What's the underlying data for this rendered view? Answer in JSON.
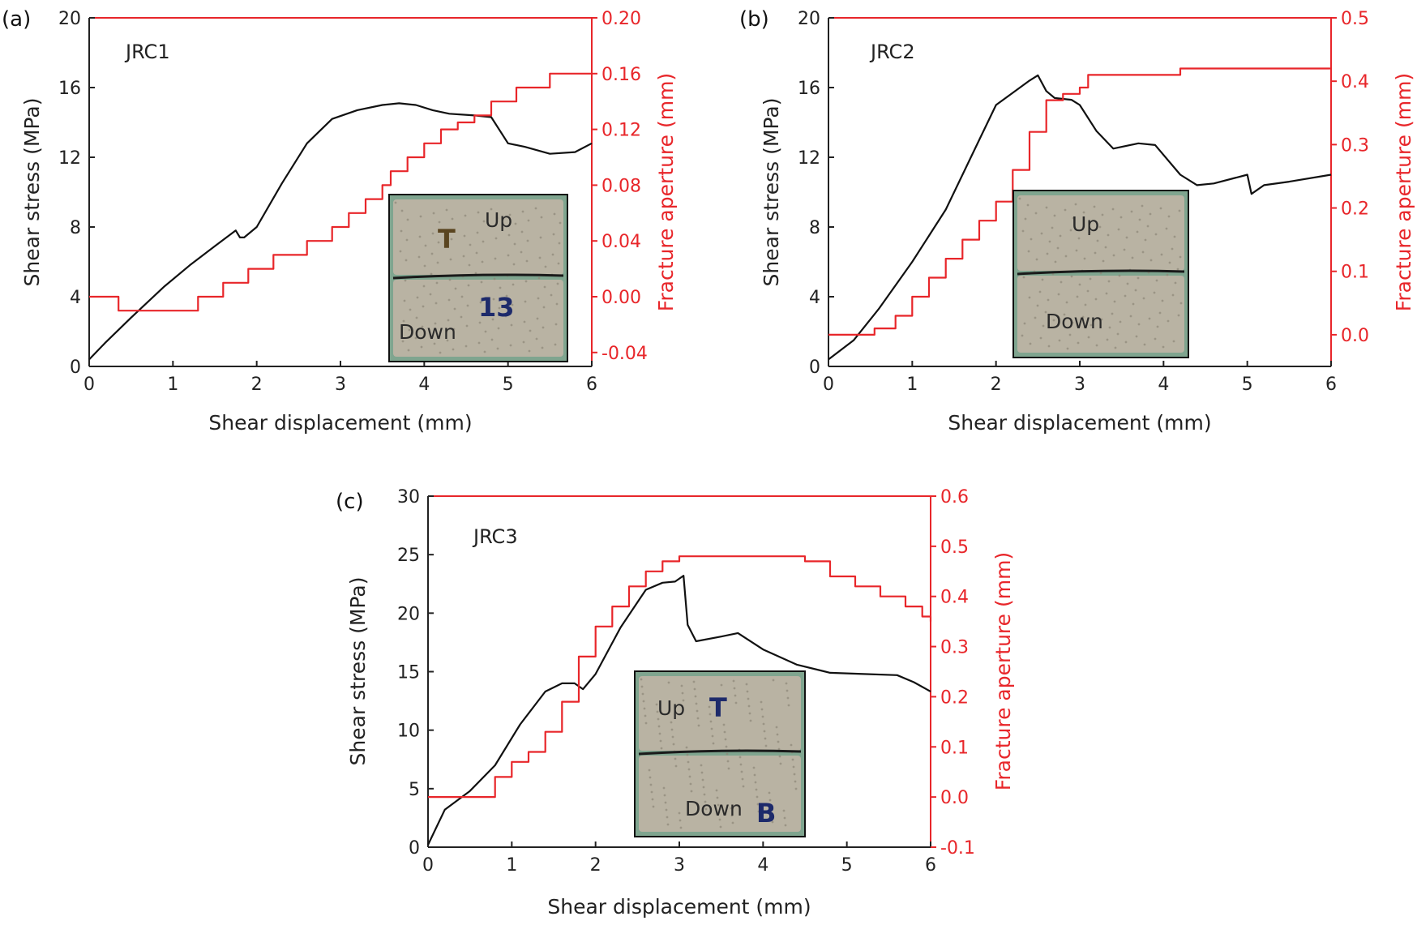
{
  "colors": {
    "stress": "#111111",
    "aperture": "#e8262a",
    "rock_base": "#b9b3a3",
    "rock_dark": "#8d8778",
    "marker_brown": "#5a4520",
    "marker_blue": "#1d2a6b"
  },
  "chart_data": [
    {
      "type": "line",
      "panel": "(a)",
      "title": "JRC1",
      "xlabel": "Shear displacement (mm)",
      "ylabel": "Shear stress (MPa)",
      "y2label": "Fracture aperture (mm)",
      "xlim": [
        0,
        6
      ],
      "ylim": [
        0,
        20
      ],
      "y2lim": [
        -0.05,
        0.2
      ],
      "x_ticks": [
        "0",
        "1",
        "2",
        "3",
        "4",
        "5",
        "6"
      ],
      "y_ticks": [
        "0",
        "4",
        "8",
        "12",
        "16",
        "20"
      ],
      "y2_ticks": [
        "-0.04",
        "0.00",
        "0.04",
        "0.08",
        "0.12",
        "0.16",
        "0.20"
      ],
      "photo": {
        "labels": [
          "Up",
          "Down"
        ],
        "markers": [
          "T",
          "13"
        ]
      },
      "series": [
        {
          "name": "Shear stress",
          "axis": "left",
          "x": [
            0,
            0.2,
            0.5,
            0.9,
            1.2,
            1.5,
            1.75,
            1.8,
            1.85,
            2.0,
            2.3,
            2.6,
            2.9,
            3.2,
            3.5,
            3.7,
            3.9,
            4.1,
            4.3,
            4.6,
            4.8,
            5.0,
            5.2,
            5.5,
            5.8,
            6.0
          ],
          "y": [
            0.4,
            1.4,
            2.8,
            4.6,
            5.8,
            6.9,
            7.8,
            7.4,
            7.4,
            8.0,
            10.5,
            12.8,
            14.2,
            14.7,
            15.0,
            15.1,
            15.0,
            14.7,
            14.5,
            14.4,
            14.3,
            12.8,
            12.6,
            12.2,
            12.3,
            12.8
          ]
        },
        {
          "name": "Fracture aperture",
          "axis": "right",
          "step": true,
          "x": [
            0,
            0.35,
            1.3,
            1.6,
            1.9,
            2.2,
            2.6,
            2.9,
            3.1,
            3.3,
            3.5,
            3.6,
            3.8,
            4.0,
            4.2,
            4.4,
            4.6,
            4.8,
            5.0,
            5.1,
            5.3,
            5.5,
            5.7,
            6.0
          ],
          "y": [
            0.0,
            -0.01,
            0.0,
            0.01,
            0.02,
            0.03,
            0.04,
            0.05,
            0.06,
            0.07,
            0.08,
            0.09,
            0.1,
            0.11,
            0.12,
            0.125,
            0.13,
            0.14,
            0.14,
            0.15,
            0.15,
            0.16,
            0.16,
            0.16
          ]
        }
      ]
    },
    {
      "type": "line",
      "panel": "(b)",
      "title": "JRC2",
      "xlabel": "Shear displacement (mm)",
      "ylabel": "Shear stress (MPa)",
      "y2label": "Fracture aperture (mm)",
      "xlim": [
        0,
        6
      ],
      "ylim": [
        0,
        20
      ],
      "y2lim": [
        -0.05,
        0.5
      ],
      "x_ticks": [
        "0",
        "1",
        "2",
        "3",
        "4",
        "5",
        "6"
      ],
      "y_ticks": [
        "0",
        "4",
        "8",
        "12",
        "16",
        "20"
      ],
      "y2_ticks": [
        "0.0",
        "0.1",
        "0.2",
        "0.3",
        "0.4",
        "0.5"
      ],
      "photo": {
        "labels": [
          "Up",
          "Down"
        ],
        "markers": []
      },
      "series": [
        {
          "name": "Shear stress",
          "axis": "left",
          "x": [
            0,
            0.3,
            0.6,
            1.0,
            1.4,
            1.8,
            2.0,
            2.2,
            2.4,
            2.5,
            2.6,
            2.7,
            2.9,
            3.0,
            3.2,
            3.4,
            3.7,
            3.9,
            4.2,
            4.4,
            4.6,
            5.0,
            5.05,
            5.2,
            5.5,
            6.0
          ],
          "y": [
            0.4,
            1.5,
            3.3,
            6.0,
            9.0,
            13.0,
            15.0,
            15.7,
            16.4,
            16.7,
            15.8,
            15.4,
            15.3,
            15.0,
            13.5,
            12.5,
            12.8,
            12.7,
            11.0,
            10.4,
            10.5,
            11.0,
            9.9,
            10.4,
            10.6,
            11.0
          ]
        },
        {
          "name": "Fracture aperture",
          "axis": "right",
          "step": true,
          "x": [
            0,
            0.55,
            0.8,
            1.0,
            1.2,
            1.4,
            1.6,
            1.8,
            2.0,
            2.2,
            2.4,
            2.6,
            2.8,
            3.0,
            3.1,
            3.5,
            4.2,
            4.5,
            5.0,
            6.0
          ],
          "y": [
            0.0,
            0.01,
            0.03,
            0.06,
            0.09,
            0.12,
            0.15,
            0.18,
            0.21,
            0.26,
            0.32,
            0.37,
            0.38,
            0.39,
            0.41,
            0.41,
            0.42,
            0.42,
            0.42,
            0.42
          ]
        }
      ]
    },
    {
      "type": "line",
      "panel": "(c)",
      "title": "JRC3",
      "xlabel": "Shear displacement (mm)",
      "ylabel": "Shear stress (MPa)",
      "y2label": "Fracture aperture (mm)",
      "xlim": [
        0,
        6
      ],
      "ylim": [
        0,
        30
      ],
      "y2lim": [
        -0.1,
        0.6
      ],
      "x_ticks": [
        "0",
        "1",
        "2",
        "3",
        "4",
        "5",
        "6"
      ],
      "y_ticks": [
        "0",
        "5",
        "10",
        "15",
        "20",
        "25",
        "30"
      ],
      "y2_ticks": [
        "-0.1",
        "0.0",
        "0.1",
        "0.2",
        "0.3",
        "0.4",
        "0.5",
        "0.6"
      ],
      "photo": {
        "labels": [
          "Up",
          "Down"
        ],
        "markers": [
          "T",
          "B"
        ]
      },
      "series": [
        {
          "name": "Shear stress",
          "axis": "left",
          "x": [
            0,
            0.2,
            0.5,
            0.8,
            1.1,
            1.4,
            1.6,
            1.75,
            1.85,
            2.0,
            2.3,
            2.6,
            2.8,
            2.95,
            3.05,
            3.1,
            3.2,
            3.5,
            3.7,
            4.0,
            4.4,
            4.8,
            5.2,
            5.6,
            5.8,
            6.0
          ],
          "y": [
            0.2,
            3.2,
            4.8,
            7.0,
            10.5,
            13.3,
            14.0,
            14.0,
            13.5,
            14.8,
            18.8,
            22.0,
            22.6,
            22.7,
            23.2,
            19.0,
            17.6,
            18.0,
            18.3,
            16.9,
            15.6,
            14.9,
            14.8,
            14.7,
            14.1,
            13.3
          ]
        },
        {
          "name": "Fracture aperture",
          "axis": "right",
          "step": true,
          "x": [
            0,
            0.5,
            0.8,
            1.0,
            1.2,
            1.4,
            1.6,
            1.8,
            2.0,
            2.2,
            2.4,
            2.6,
            2.8,
            3.0,
            3.3,
            4.0,
            4.5,
            4.8,
            5.1,
            5.4,
            5.7,
            5.9,
            6.0
          ],
          "y": [
            0.0,
            0.0,
            0.04,
            0.07,
            0.09,
            0.13,
            0.19,
            0.28,
            0.34,
            0.38,
            0.42,
            0.45,
            0.47,
            0.48,
            0.48,
            0.48,
            0.47,
            0.44,
            0.42,
            0.4,
            0.38,
            0.36,
            0.35
          ]
        }
      ]
    }
  ]
}
